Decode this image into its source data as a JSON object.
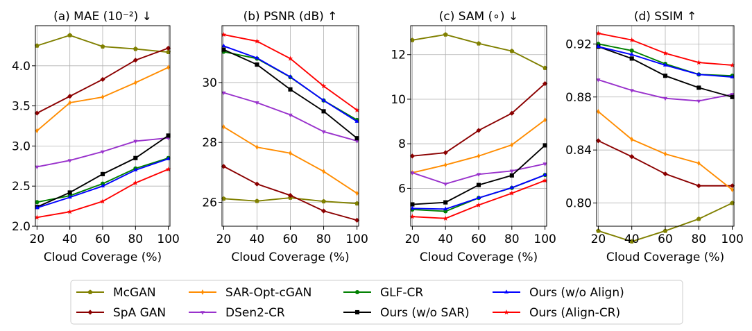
{
  "chart_data": [
    {
      "type": "line",
      "title": "(a) MAE (10⁻²)  ↓",
      "xlabel": "Cloud Coverage (%)",
      "x": [
        20,
        40,
        60,
        80,
        100
      ],
      "xticks": [
        "20",
        "40",
        "60",
        "80",
        "100"
      ],
      "ylim": [
        2.0,
        4.5
      ],
      "yticks": [
        "2.0",
        "2.5",
        "3.0",
        "3.5",
        "4.0"
      ],
      "yticks_values": [
        2.0,
        2.5,
        3.0,
        3.5,
        4.0
      ],
      "grid": true,
      "series": [
        {
          "name": "McGAN",
          "values": [
            4.25,
            4.38,
            4.24,
            4.21,
            4.17
          ]
        },
        {
          "name": "SpA GAN",
          "values": [
            3.41,
            3.62,
            3.83,
            4.07,
            4.22
          ]
        },
        {
          "name": "SAR-Opt-cGAN",
          "values": [
            3.19,
            3.54,
            3.61,
            3.79,
            3.98
          ]
        },
        {
          "name": "DSen2-CR",
          "values": [
            2.74,
            2.82,
            2.93,
            3.06,
            3.1
          ]
        },
        {
          "name": "GLF-CR",
          "values": [
            2.3,
            2.38,
            2.53,
            2.72,
            2.85
          ]
        },
        {
          "name": "Ours (w/o SAR)",
          "values": [
            2.24,
            2.42,
            2.65,
            2.85,
            3.13
          ]
        },
        {
          "name": "Ours (w/o Align)",
          "values": [
            2.23,
            2.36,
            2.5,
            2.7,
            2.84
          ]
        },
        {
          "name": "Ours (Align-CR)",
          "values": [
            2.11,
            2.18,
            2.31,
            2.54,
            2.71
          ]
        }
      ]
    },
    {
      "type": "line",
      "title": "(b) PSNR (dB)  ↑",
      "xlabel": "Cloud Coverage (%)",
      "x": [
        20,
        40,
        60,
        80,
        100
      ],
      "xticks": [
        "20",
        "40",
        "60",
        "80",
        "100"
      ],
      "ylim": [
        25.2,
        31.9
      ],
      "yticks": [
        "26",
        "28",
        "30"
      ],
      "yticks_values": [
        26,
        28,
        30
      ],
      "grid": true,
      "series": [
        {
          "name": "McGAN",
          "values": [
            26.12,
            26.04,
            26.15,
            26.03,
            25.96
          ]
        },
        {
          "name": "SpA GAN",
          "values": [
            27.2,
            26.61,
            26.23,
            25.71,
            25.4
          ]
        },
        {
          "name": "SAR-Opt-cGAN",
          "values": [
            28.52,
            27.84,
            27.64,
            27.03,
            26.3
          ]
        },
        {
          "name": "DSen2-CR",
          "values": [
            29.66,
            29.33,
            28.92,
            28.36,
            28.05
          ]
        },
        {
          "name": "GLF-CR",
          "values": [
            31.03,
            30.8,
            30.18,
            29.4,
            28.75
          ]
        },
        {
          "name": "Ours (w/o SAR)",
          "values": [
            31.1,
            30.6,
            29.77,
            29.04,
            28.14
          ]
        },
        {
          "name": "Ours (w/o Align)",
          "values": [
            31.22,
            30.82,
            30.19,
            29.4,
            28.7
          ]
        },
        {
          "name": "Ours (Align-CR)",
          "values": [
            31.6,
            31.38,
            30.8,
            29.88,
            29.08
          ]
        }
      ]
    },
    {
      "type": "line",
      "title": "(c) SAM (∘)  ↓",
      "xlabel": "Cloud Coverage (%)",
      "x": [
        20,
        40,
        60,
        80,
        100
      ],
      "xticks": [
        "20",
        "40",
        "60",
        "80",
        "100"
      ],
      "ylim": [
        4.3,
        13.3
      ],
      "yticks": [
        "6",
        "8",
        "10",
        "12"
      ],
      "yticks_values": [
        6,
        8,
        10,
        12
      ],
      "grid": true,
      "series": [
        {
          "name": "McGAN",
          "values": [
            12.65,
            12.9,
            12.5,
            12.16,
            11.4
          ]
        },
        {
          "name": "SpA GAN",
          "values": [
            7.45,
            7.6,
            8.6,
            9.37,
            10.7
          ]
        },
        {
          "name": "SAR-Opt-cGAN",
          "values": [
            6.7,
            7.05,
            7.45,
            7.95,
            9.07
          ]
        },
        {
          "name": "DSen2-CR",
          "values": [
            6.7,
            6.2,
            6.63,
            6.78,
            7.1
          ]
        },
        {
          "name": "GLF-CR",
          "values": [
            5.05,
            4.97,
            5.57,
            6.02,
            6.6
          ]
        },
        {
          "name": "Ours (w/o SAR)",
          "values": [
            5.28,
            5.37,
            6.15,
            6.58,
            7.93
          ]
        },
        {
          "name": "Ours (w/o Align)",
          "values": [
            5.1,
            5.07,
            5.57,
            6.03,
            6.6
          ]
        },
        {
          "name": "Ours (Align-CR)",
          "values": [
            4.73,
            4.65,
            5.25,
            5.78,
            6.35
          ]
        }
      ]
    },
    {
      "type": "line",
      "title": "(d) SSIM  ↑",
      "xlabel": "Cloud Coverage (%)",
      "x": [
        20,
        40,
        60,
        80,
        100
      ],
      "xticks": [
        "20",
        "40",
        "60",
        "80",
        "100"
      ],
      "ylim": [
        0.7825,
        0.9338
      ],
      "yticks": [
        "0.80",
        "0.84",
        "0.88",
        "0.92"
      ],
      "yticks_values": [
        0.8,
        0.84,
        0.88,
        0.92
      ],
      "grid": true,
      "series": [
        {
          "name": "McGAN",
          "values": [
            0.779,
            0.771,
            0.779,
            0.788,
            0.8
          ]
        },
        {
          "name": "SpA GAN",
          "values": [
            0.847,
            0.835,
            0.822,
            0.813,
            0.813
          ]
        },
        {
          "name": "SAR-Opt-cGAN",
          "values": [
            0.869,
            0.848,
            0.837,
            0.83,
            0.81
          ]
        },
        {
          "name": "DSen2-CR",
          "values": [
            0.893,
            0.885,
            0.879,
            0.877,
            0.882
          ]
        },
        {
          "name": "GLF-CR",
          "values": [
            0.92,
            0.915,
            0.905,
            0.897,
            0.896
          ]
        },
        {
          "name": "Ours (w/o SAR)",
          "values": [
            0.918,
            0.909,
            0.896,
            0.887,
            0.88
          ]
        },
        {
          "name": "Ours (w/o Align)",
          "values": [
            0.918,
            0.912,
            0.904,
            0.897,
            0.895
          ]
        },
        {
          "name": "Ours (Align-CR)",
          "values": [
            0.928,
            0.923,
            0.913,
            0.906,
            0.904
          ]
        }
      ]
    }
  ],
  "styles": [
    {
      "name": "McGAN",
      "color": "#808000",
      "marker": "pentagon"
    },
    {
      "name": "SpA GAN",
      "color": "#8b0000",
      "marker": "diamond"
    },
    {
      "name": "SAR-Opt-cGAN",
      "color": "#ff8c00",
      "marker": "thin-diamond"
    },
    {
      "name": "DSen2-CR",
      "color": "#9932cc",
      "marker": "triangle-down"
    },
    {
      "name": "GLF-CR",
      "color": "#008000",
      "marker": "circle"
    },
    {
      "name": "Ours (w/o SAR)",
      "color": "#000000",
      "marker": "square"
    },
    {
      "name": "Ours (w/o Align)",
      "color": "#0000ff",
      "marker": "triangle-up"
    },
    {
      "name": "Ours (Align-CR)",
      "color": "#ff0000",
      "marker": "star"
    }
  ],
  "legend": {
    "placement": "bottom",
    "columns": [
      [
        "McGAN",
        "SpA GAN"
      ],
      [
        "SAR-Opt-cGAN",
        "DSen2-CR"
      ],
      [
        "GLF-CR",
        "Ours (w/o SAR)"
      ],
      [
        "Ours (w/o Align)",
        "Ours (Align-CR)"
      ]
    ]
  }
}
